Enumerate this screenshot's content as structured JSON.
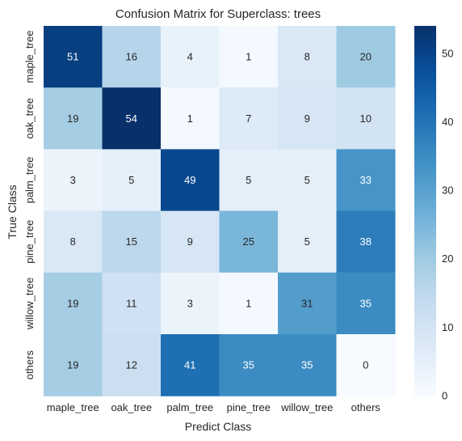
{
  "chart_data": {
    "type": "heatmap",
    "title": "Confusion Matrix for Superclass: trees",
    "xlabel": "Predict Class",
    "ylabel": "True Class",
    "x_categories": [
      "maple_tree",
      "oak_tree",
      "palm_tree",
      "pine_tree",
      "willow_tree",
      "others"
    ],
    "y_categories": [
      "maple_tree",
      "oak_tree",
      "palm_tree",
      "pine_tree",
      "willow_tree",
      "others"
    ],
    "values": [
      [
        51,
        16,
        4,
        1,
        8,
        20
      ],
      [
        19,
        54,
        1,
        7,
        9,
        10
      ],
      [
        3,
        5,
        49,
        5,
        5,
        33
      ],
      [
        8,
        15,
        9,
        25,
        5,
        38
      ],
      [
        19,
        11,
        3,
        1,
        31,
        35
      ],
      [
        19,
        12,
        41,
        35,
        35,
        0
      ]
    ],
    "colormap": "Blues",
    "vmin": 0,
    "vmax": 54,
    "colorbar_ticks": [
      0,
      10,
      20,
      30,
      40,
      50
    ],
    "grid": false
  }
}
